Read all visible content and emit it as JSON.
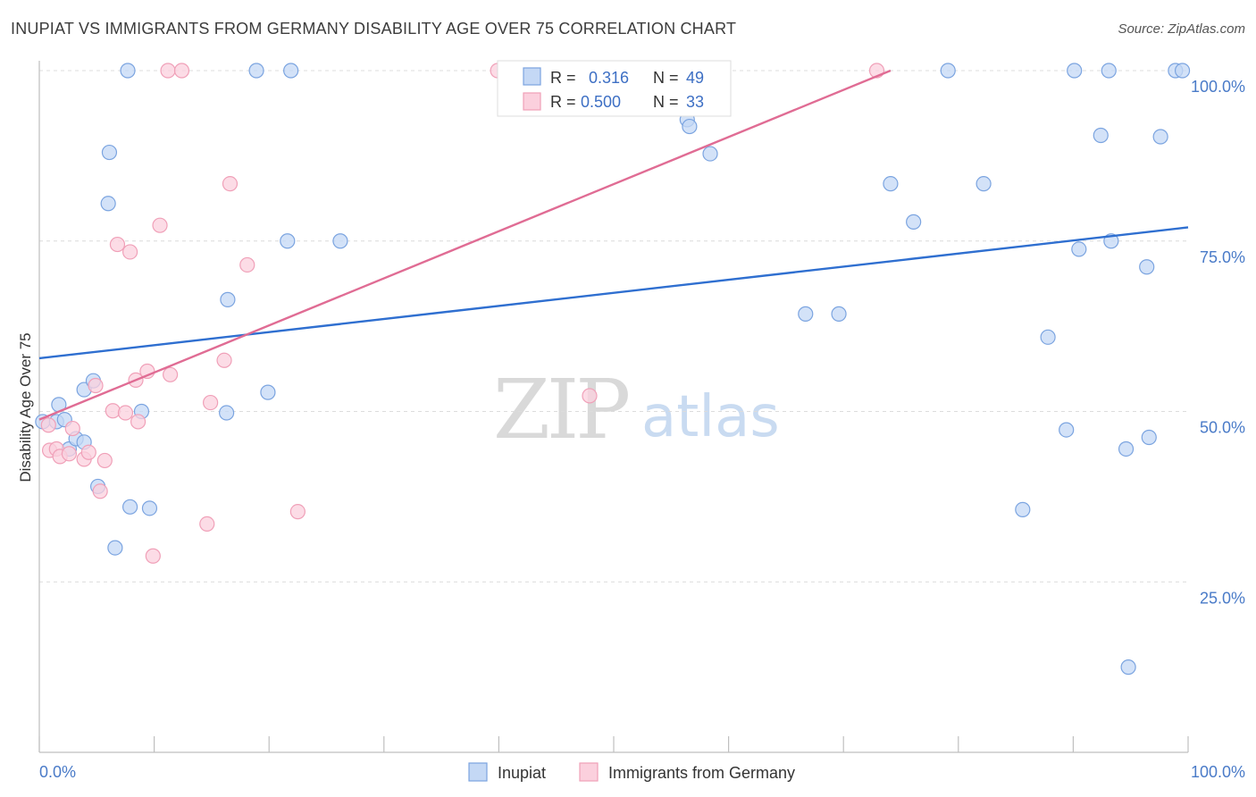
{
  "title": "INUPIAT VS IMMIGRANTS FROM GERMANY DISABILITY AGE OVER 75 CORRELATION CHART",
  "source": "Source: ZipAtlas.com",
  "watermark": {
    "zip": "ZIP",
    "atlas": "atlas"
  },
  "chart_data": {
    "type": "scatter",
    "title": "INUPIAT VS IMMIGRANTS FROM GERMANY DISABILITY AGE OVER 75 CORRELATION CHART",
    "ylabel": "Disability Age Over 75",
    "xlabel": "",
    "xlim": [
      0,
      100
    ],
    "ylim": [
      0,
      104
    ],
    "x_tick_labels": [
      "0.0%",
      "100.0%"
    ],
    "y_ticks": [
      {
        "value": 25,
        "label": "25.0%"
      },
      {
        "value": 50,
        "label": "50.0%"
      },
      {
        "value": 75,
        "label": "75.0%"
      },
      {
        "value": 100,
        "label": "100.0%"
      }
    ],
    "grid": true,
    "legend_position": "bottom",
    "stats_box": [
      {
        "r_label": "R =",
        "r_value": "0.316",
        "n_label": "N =",
        "n_value": "49"
      },
      {
        "r_label": "R =",
        "r_value": "0.500",
        "n_label": "N =",
        "n_value": "33"
      }
    ],
    "series": [
      {
        "name": "Inupiat",
        "color": "#7ba4e0",
        "fill": "#c4d8f5",
        "line_color": "#2f6fd0",
        "trend": {
          "x0": 0,
          "y0": 57.8,
          "x1": 100,
          "y1": 77
        },
        "points": [
          [
            0.3,
            48.5
          ],
          [
            1.5,
            48.5
          ],
          [
            1.7,
            51
          ],
          [
            2.2,
            48.8
          ],
          [
            2.6,
            44.5
          ],
          [
            3.2,
            46
          ],
          [
            3.9,
            45.5
          ],
          [
            3.9,
            53.2
          ],
          [
            4.7,
            54.5
          ],
          [
            5.1,
            39
          ],
          [
            6.1,
            88
          ],
          [
            6,
            80.5
          ],
          [
            6.6,
            30
          ],
          [
            7.7,
            100
          ],
          [
            7.9,
            36
          ],
          [
            8.9,
            50
          ],
          [
            9.6,
            35.8
          ],
          [
            16.3,
            49.8
          ],
          [
            16.4,
            66.4
          ],
          [
            18.9,
            100
          ],
          [
            21.6,
            75
          ],
          [
            21.9,
            100
          ],
          [
            19.9,
            52.8
          ],
          [
            26.2,
            75
          ],
          [
            52.6,
            95
          ],
          [
            56.4,
            92.8
          ],
          [
            56.6,
            91.8
          ],
          [
            58.4,
            87.8
          ],
          [
            66.7,
            64.3
          ],
          [
            69.6,
            64.3
          ],
          [
            74.1,
            83.4
          ],
          [
            76.1,
            77.8
          ],
          [
            79.1,
            100
          ],
          [
            82.2,
            83.4
          ],
          [
            85.6,
            35.6
          ],
          [
            87.8,
            60.9
          ],
          [
            89.4,
            47.3
          ],
          [
            90.1,
            100
          ],
          [
            90.5,
            73.8
          ],
          [
            92.4,
            90.5
          ],
          [
            93.1,
            100
          ],
          [
            93.3,
            75
          ],
          [
            94.6,
            44.5
          ],
          [
            94.8,
            12.5
          ],
          [
            96.4,
            71.2
          ],
          [
            96.6,
            46.2
          ],
          [
            97.6,
            90.3
          ],
          [
            98.9,
            100
          ],
          [
            99.5,
            100
          ]
        ]
      },
      {
        "name": "Immigrants from Germany",
        "color": "#f0a0b8",
        "fill": "#fbd0dd",
        "line_color": "#e06c94",
        "trend": {
          "x0": 0,
          "y0": 48.8,
          "x1": 74.1,
          "y1": 100
        },
        "points": [
          [
            0.8,
            48
          ],
          [
            0.9,
            44.3
          ],
          [
            1.5,
            44.5
          ],
          [
            1.8,
            43.4
          ],
          [
            2.6,
            43.8
          ],
          [
            2.9,
            47.5
          ],
          [
            3.9,
            43
          ],
          [
            4.3,
            44
          ],
          [
            4.9,
            53.8
          ],
          [
            5.3,
            38.3
          ],
          [
            5.7,
            42.8
          ],
          [
            6.4,
            50.1
          ],
          [
            6.8,
            74.5
          ],
          [
            7.5,
            49.8
          ],
          [
            7.9,
            73.4
          ],
          [
            8.4,
            54.6
          ],
          [
            8.6,
            48.5
          ],
          [
            9.4,
            55.9
          ],
          [
            9.9,
            28.8
          ],
          [
            10.5,
            77.3
          ],
          [
            11.4,
            55.4
          ],
          [
            11.2,
            100
          ],
          [
            12.4,
            100
          ],
          [
            14.6,
            33.5
          ],
          [
            14.9,
            51.3
          ],
          [
            16.1,
            57.5
          ],
          [
            16.6,
            83.4
          ],
          [
            18.1,
            71.5
          ],
          [
            22.5,
            35.3
          ],
          [
            39.9,
            100
          ],
          [
            47.9,
            52.3
          ],
          [
            57.6,
            96
          ],
          [
            72.9,
            100
          ]
        ]
      }
    ]
  }
}
